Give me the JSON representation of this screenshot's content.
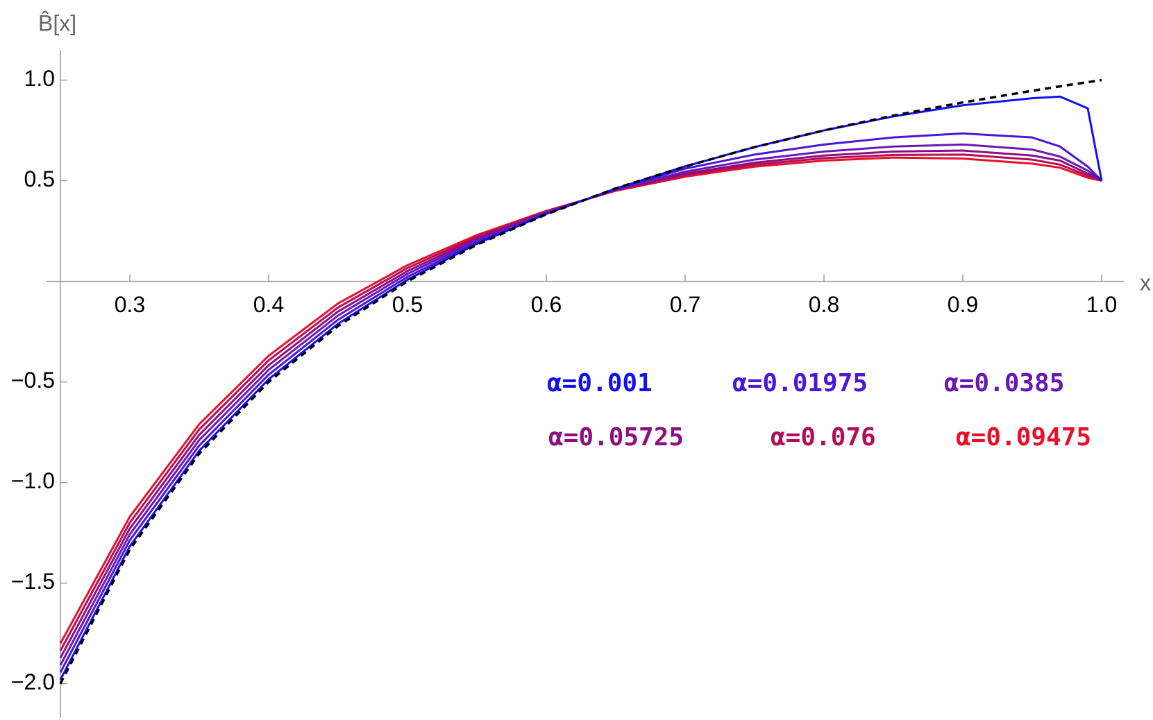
{
  "chart_data": {
    "type": "line",
    "x_label": "x",
    "y_label": "B̂[x]",
    "x": [
      0.25,
      0.3,
      0.35,
      0.4,
      0.45,
      0.5,
      0.55,
      0.6,
      0.65,
      0.7,
      0.75,
      0.8,
      0.85,
      0.9,
      0.95,
      0.97,
      0.99,
      1.0
    ],
    "series": [
      {
        "color": "#000000",
        "dashed": true,
        "values": [
          -2,
          -1.333,
          -0.857,
          -0.5,
          -0.222,
          0,
          0.182,
          0.333,
          0.462,
          0.571,
          0.667,
          0.75,
          0.824,
          0.889,
          0.947,
          0.969,
          0.99,
          1
        ]
      },
      {
        "name": "α=0.001",
        "color": "#1010f0",
        "values": [
          -1.98,
          -1.317,
          -0.842,
          -0.487,
          -0.211,
          0.008,
          0.187,
          0.335,
          0.461,
          0.571,
          0.667,
          0.75,
          0.82,
          0.875,
          0.91,
          0.918,
          0.86,
          0.5
        ]
      },
      {
        "name": "α=0.01975",
        "color": "#4a16d8",
        "values": [
          -1.944,
          -1.287,
          -0.816,
          -0.464,
          -0.191,
          0.022,
          0.195,
          0.338,
          0.459,
          0.56,
          0.63,
          0.68,
          0.715,
          0.735,
          0.715,
          0.67,
          0.57,
          0.5
        ]
      },
      {
        "name": "α=0.0385",
        "color": "#6a18b4",
        "values": [
          -1.908,
          -1.258,
          -0.789,
          -0.44,
          -0.17,
          0.037,
          0.204,
          0.341,
          0.456,
          0.545,
          0.605,
          0.645,
          0.67,
          0.68,
          0.655,
          0.62,
          0.55,
          0.5
        ]
      },
      {
        "name": "α=0.05725",
        "color": "#8c0f82",
        "values": [
          -1.872,
          -1.229,
          -0.763,
          -0.417,
          -0.15,
          0.051,
          0.213,
          0.344,
          0.454,
          0.535,
          0.59,
          0.625,
          0.645,
          0.65,
          0.625,
          0.6,
          0.535,
          0.5
        ]
      },
      {
        "name": "α=0.076",
        "color": "#b20e58",
        "values": [
          -1.836,
          -1.2,
          -0.736,
          -0.393,
          -0.13,
          0.066,
          0.221,
          0.347,
          0.452,
          0.528,
          0.58,
          0.612,
          0.628,
          0.63,
          0.605,
          0.58,
          0.525,
          0.5
        ]
      },
      {
        "name": "α=0.09475",
        "color": "#e81028",
        "values": [
          -1.8,
          -1.17,
          -0.71,
          -0.37,
          -0.11,
          0.08,
          0.23,
          0.35,
          0.45,
          0.52,
          0.57,
          0.6,
          0.615,
          0.61,
          0.585,
          0.565,
          0.515,
          0.5
        ]
      }
    ],
    "xlim": [
      0.24,
      1.016
    ],
    "ylim": [
      -2.17,
      1.15
    ],
    "axes_origin": [
      0.25,
      0
    ],
    "xticks": [
      0.3,
      0.4,
      0.5,
      0.6,
      0.7,
      0.8,
      0.9,
      {
        "value": 1,
        "label": "1.0"
      }
    ],
    "yticks": [
      {
        "value": -2,
        "label": "−2.0"
      },
      {
        "value": -1.5,
        "label": "−1.5"
      },
      {
        "value": -1,
        "label": "−1.0"
      },
      {
        "value": -0.5,
        "label": "−0.5"
      },
      0.5,
      {
        "value": 1,
        "label": "1.0"
      }
    ]
  }
}
